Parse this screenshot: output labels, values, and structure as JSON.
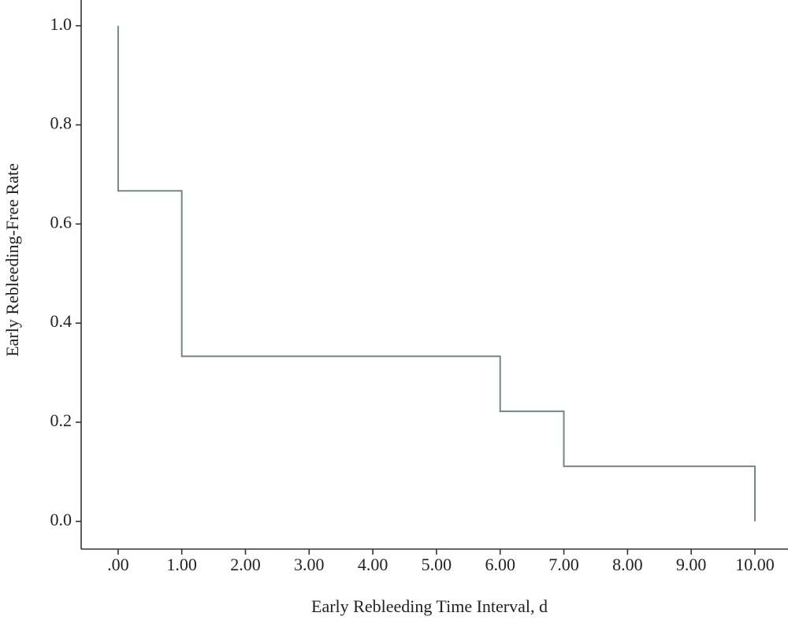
{
  "chart_data": {
    "type": "step",
    "x_label": "Early Rebleeding Time Interval, d",
    "y_label": "Early Rebleeding-Free Rate",
    "x": [
      0,
      0,
      1,
      1,
      6,
      6,
      7,
      7,
      10,
      10
    ],
    "values": [
      1.0,
      0.667,
      0.667,
      0.333,
      0.333,
      0.222,
      0.222,
      0.111,
      0.111,
      0.0
    ],
    "color": "#788683",
    "xlim": [
      -0.58,
      10.52
    ],
    "ylim": [
      -0.056,
      1.052
    ],
    "xticks": [
      {
        "value": 0,
        "label": ".00"
      },
      {
        "value": 1,
        "label": "1.00"
      },
      {
        "value": 2,
        "label": "2.00"
      },
      {
        "value": 3,
        "label": "3.00"
      },
      {
        "value": 4,
        "label": "4.00"
      },
      {
        "value": 5,
        "label": "5.00"
      },
      {
        "value": 6,
        "label": "6.00"
      },
      {
        "value": 7,
        "label": "7.00"
      },
      {
        "value": 8,
        "label": "8.00"
      },
      {
        "value": 9,
        "label": "9.00"
      },
      {
        "value": 10,
        "label": "10.00"
      }
    ],
    "yticks": [
      {
        "value": 0,
        "label": "0.0"
      },
      {
        "value": 0.2,
        "label": "0.2"
      },
      {
        "value": 0.4,
        "label": "0.4"
      },
      {
        "value": 0.6,
        "label": "0.6"
      },
      {
        "value": 0.8,
        "label": "0.8"
      },
      {
        "value": 1,
        "label": "1.0"
      }
    ]
  }
}
